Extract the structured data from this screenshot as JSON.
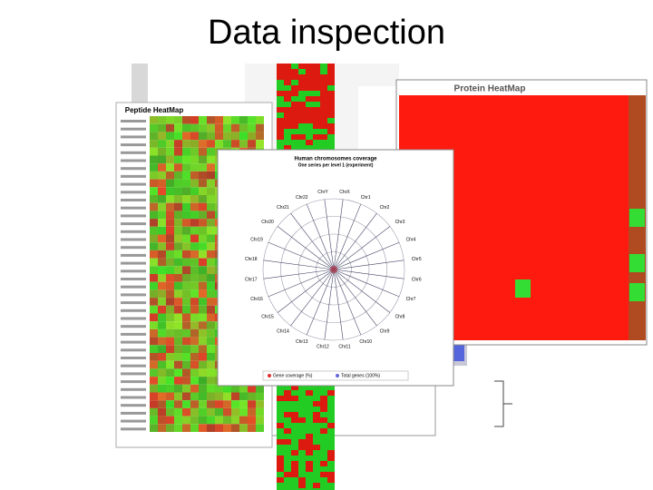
{
  "slide": {
    "title": "Data inspection"
  },
  "peptide_heatmap": {
    "title": "Peptide HeatMap"
  },
  "protein_heatmap": {
    "title": "Protein HeatMap"
  },
  "coverage_window": {
    "title": "Human chromosomes coverage",
    "subtitle": "One series per level 1 (experiment)",
    "axes": [
      "ChrX",
      "Chr1",
      "Chr2",
      "Chr3",
      "Chr4",
      "Chr5",
      "Chr6",
      "Chr7",
      "Chr8",
      "Chr9",
      "Chr10",
      "Chr11",
      "Chr12",
      "Chr13",
      "Chr14",
      "Chr15",
      "Chr16",
      "Chr17",
      "Chr18",
      "Chr19",
      "Chr20",
      "Chr21",
      "Chr22",
      "ChrY"
    ],
    "legend": [
      "Gene coverage (%)",
      "Total genes (100%)"
    ]
  }
}
